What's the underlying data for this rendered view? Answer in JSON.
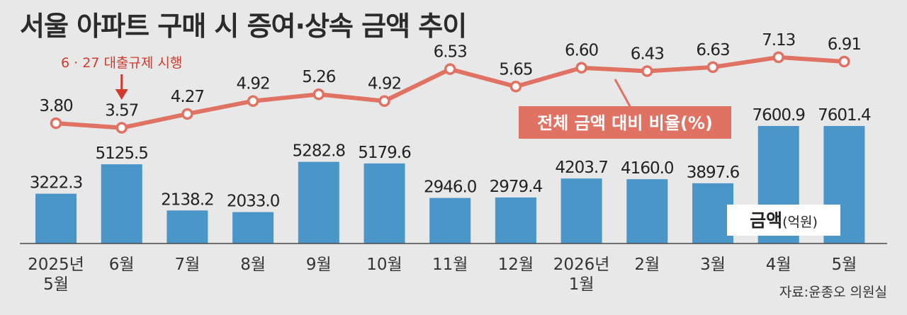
{
  "title": "서울 아파트 구매 시 증여·상속 금액 추이",
  "source": "자료:윤종오 의원실",
  "chart_data": {
    "type": "bar",
    "categories": [
      [
        "2025년",
        "5월"
      ],
      [
        "6월"
      ],
      [
        "7월"
      ],
      [
        "8월"
      ],
      [
        "9월"
      ],
      [
        "10월"
      ],
      [
        "11월"
      ],
      [
        "12월"
      ],
      [
        "2026년",
        "1월"
      ],
      [
        "2월"
      ],
      [
        "3월"
      ],
      [
        "4월"
      ],
      [
        "5월"
      ]
    ],
    "series": [
      {
        "name": "금액(억원)",
        "type": "bar",
        "values": [
          3222.3,
          5125.5,
          2138.2,
          2033.0,
          5282.8,
          5179.6,
          2946.0,
          2979.4,
          4203.7,
          4160.0,
          3897.6,
          7600.9,
          7601.4
        ],
        "labels": [
          "3222.3",
          "5125.5",
          "2138.2",
          "2033.0",
          "5282.8",
          "5179.6",
          "2946.0",
          "2979.4",
          "4203.7",
          "4160.0",
          "3897.6",
          "7600.9",
          "7601.4"
        ],
        "color": "#4a96c8"
      },
      {
        "name": "전체 금액 대비 비율(%)",
        "type": "line",
        "values": [
          3.8,
          3.57,
          4.27,
          4.92,
          5.26,
          4.92,
          6.53,
          5.65,
          6.6,
          6.43,
          6.63,
          7.13,
          6.91
        ],
        "labels": [
          "3.80",
          "3.57",
          "4.27",
          "4.92",
          "5.26",
          "4.92",
          "6.53",
          "5.65",
          "6.60",
          "6.43",
          "6.63",
          "7.13",
          "6.91"
        ],
        "color": "#e07263"
      }
    ],
    "annotation": {
      "text": "6 · 27 대출규제 시행",
      "category_index": 1,
      "color": "#d23a2e"
    },
    "legend_line": "전체 금액 대비 비율(%)",
    "legend_bar": {
      "main": "금액",
      "unit": "(억원)"
    },
    "grid": false
  }
}
